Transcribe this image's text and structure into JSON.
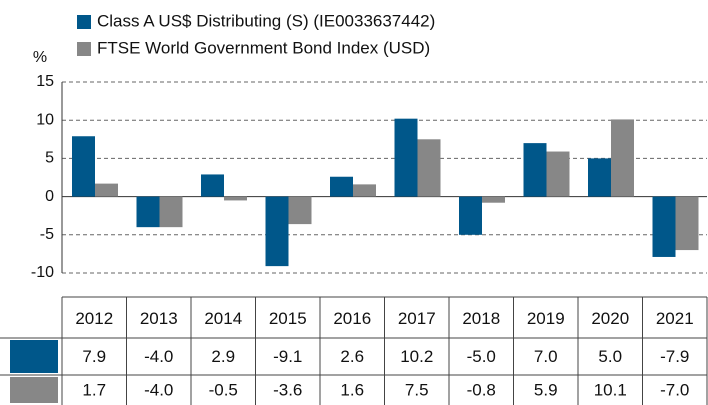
{
  "chart_data": {
    "type": "bar",
    "y_label": "%",
    "categories": [
      "2012",
      "2013",
      "2014",
      "2015",
      "2016",
      "2017",
      "2018",
      "2019",
      "2020",
      "2021"
    ],
    "series": [
      {
        "name": "Class A US$ Distributing (S) (IE0033637442)",
        "color": "#00578a",
        "values": [
          7.9,
          -4.0,
          2.9,
          -9.1,
          2.6,
          10.2,
          -5.0,
          7.0,
          5.0,
          -7.9
        ],
        "value_labels": [
          "7.9",
          "-4.0",
          "2.9",
          "-9.1",
          "2.6",
          "10.2",
          "-5.0",
          "7.0",
          "5.0",
          "-7.9"
        ]
      },
      {
        "name": "FTSE World Government Bond Index (USD)",
        "color": "#878787",
        "values": [
          1.7,
          -4.0,
          -0.5,
          -3.6,
          1.6,
          7.5,
          -0.8,
          5.9,
          10.1,
          -7.0
        ],
        "value_labels": [
          "1.7",
          "-4.0",
          "-0.5",
          "-3.6",
          "1.6",
          "7.5",
          "-0.8",
          "5.9",
          "10.1",
          "-7.0"
        ]
      }
    ],
    "ylim": [
      -10,
      15
    ],
    "yticks": [
      -10,
      -5,
      0,
      5,
      10,
      15
    ],
    "grid": true
  }
}
